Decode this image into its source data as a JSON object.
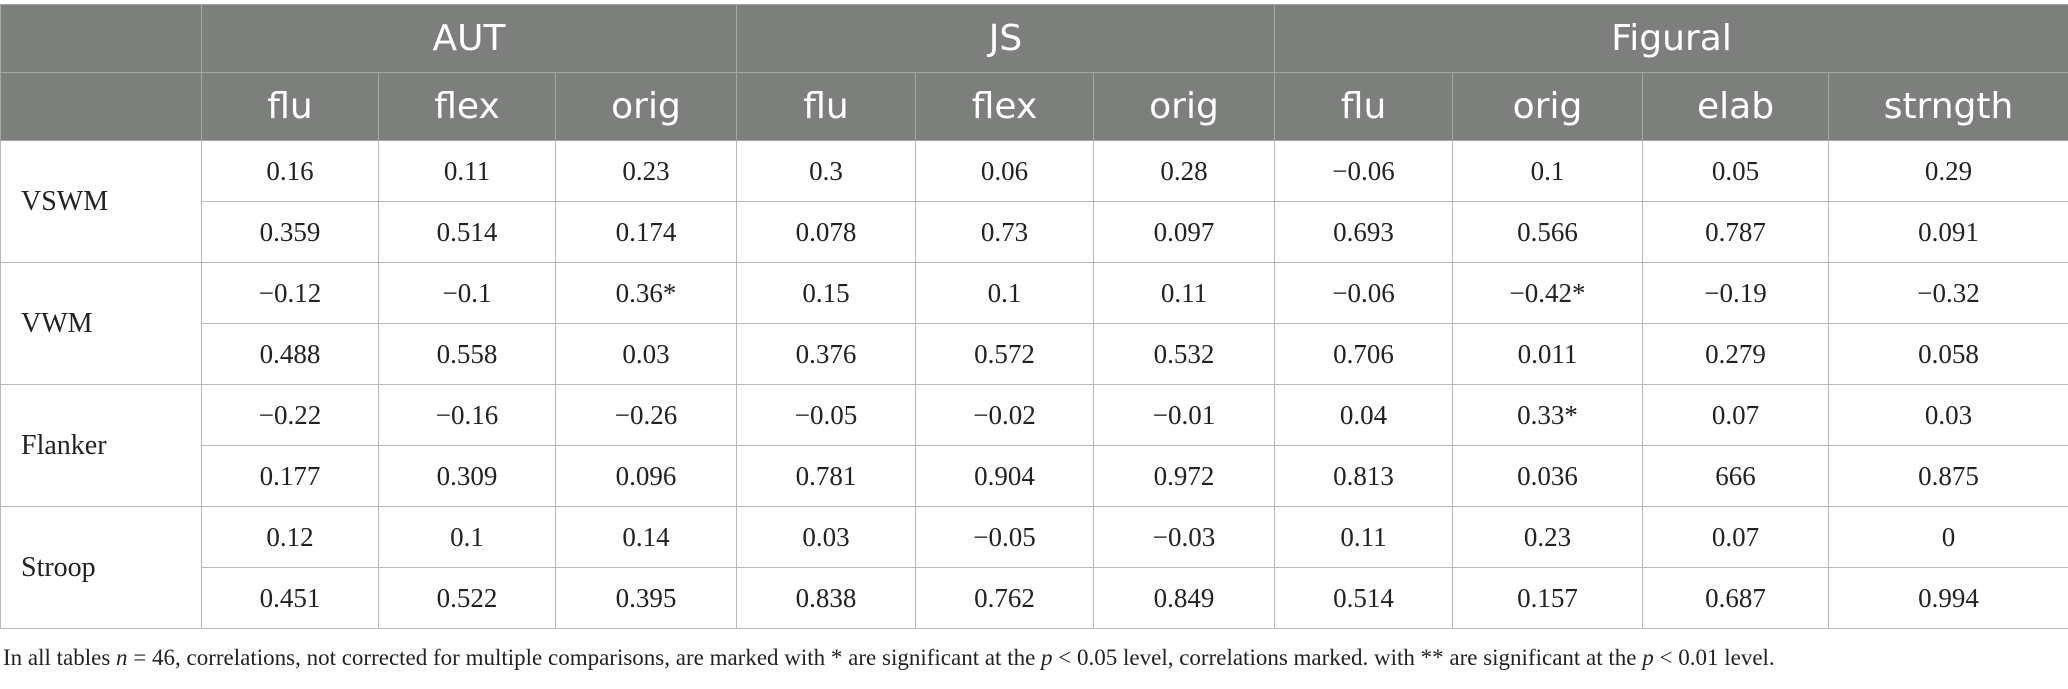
{
  "header": {
    "groups": [
      "AUT",
      "JS",
      "Figural"
    ],
    "subcolumns": [
      "flu",
      "flex",
      "orig",
      "flu",
      "flex",
      "orig",
      "flu",
      "orig",
      "elab",
      "strngth"
    ]
  },
  "rows": [
    {
      "label": "VSWM",
      "r": [
        "0.16",
        "0.11",
        "0.23",
        "0.3",
        "0.06",
        "0.28",
        "−0.06",
        "0.1",
        "0.05",
        "0.29"
      ],
      "p": [
        "0.359",
        "0.514",
        "0.174",
        "0.078",
        "0.73",
        "0.097",
        "0.693",
        "0.566",
        "0.787",
        "0.091"
      ]
    },
    {
      "label": "VWM",
      "r": [
        "−0.12",
        "−0.1",
        "0.36*",
        "0.15",
        "0.1",
        "0.11",
        "−0.06",
        "−0.42*",
        "−0.19",
        "−0.32"
      ],
      "p": [
        "0.488",
        "0.558",
        "0.03",
        "0.376",
        "0.572",
        "0.532",
        "0.706",
        "0.011",
        "0.279",
        "0.058"
      ]
    },
    {
      "label": "Flanker",
      "r": [
        "−0.22",
        "−0.16",
        "−0.26",
        "−0.05",
        "−0.02",
        "−0.01",
        "0.04",
        "0.33*",
        "0.07",
        "0.03"
      ],
      "p": [
        "0.177",
        "0.309",
        "0.096",
        "0.781",
        "0.904",
        "0.972",
        "0.813",
        "0.036",
        "666",
        "0.875"
      ]
    },
    {
      "label": "Stroop",
      "r": [
        "0.12",
        "0.1",
        "0.14",
        "0.03",
        "−0.05",
        "−0.03",
        "0.11",
        "0.23",
        "0.07",
        "0"
      ],
      "p": [
        "0.451",
        "0.522",
        "0.395",
        "0.838",
        "0.762",
        "0.849",
        "0.514",
        "0.157",
        "0.687",
        "0.994"
      ]
    }
  ],
  "note": {
    "t1": "In all tables ",
    "v1": "n",
    "t2": " = 46, correlations, not corrected for multiple comparisons, are marked with * are significant at the ",
    "v2": "p",
    "t3": " < 0.05 level, correlations marked. with ** are significant at the ",
    "v3": "p",
    "t4": " < 0.01 level."
  }
}
